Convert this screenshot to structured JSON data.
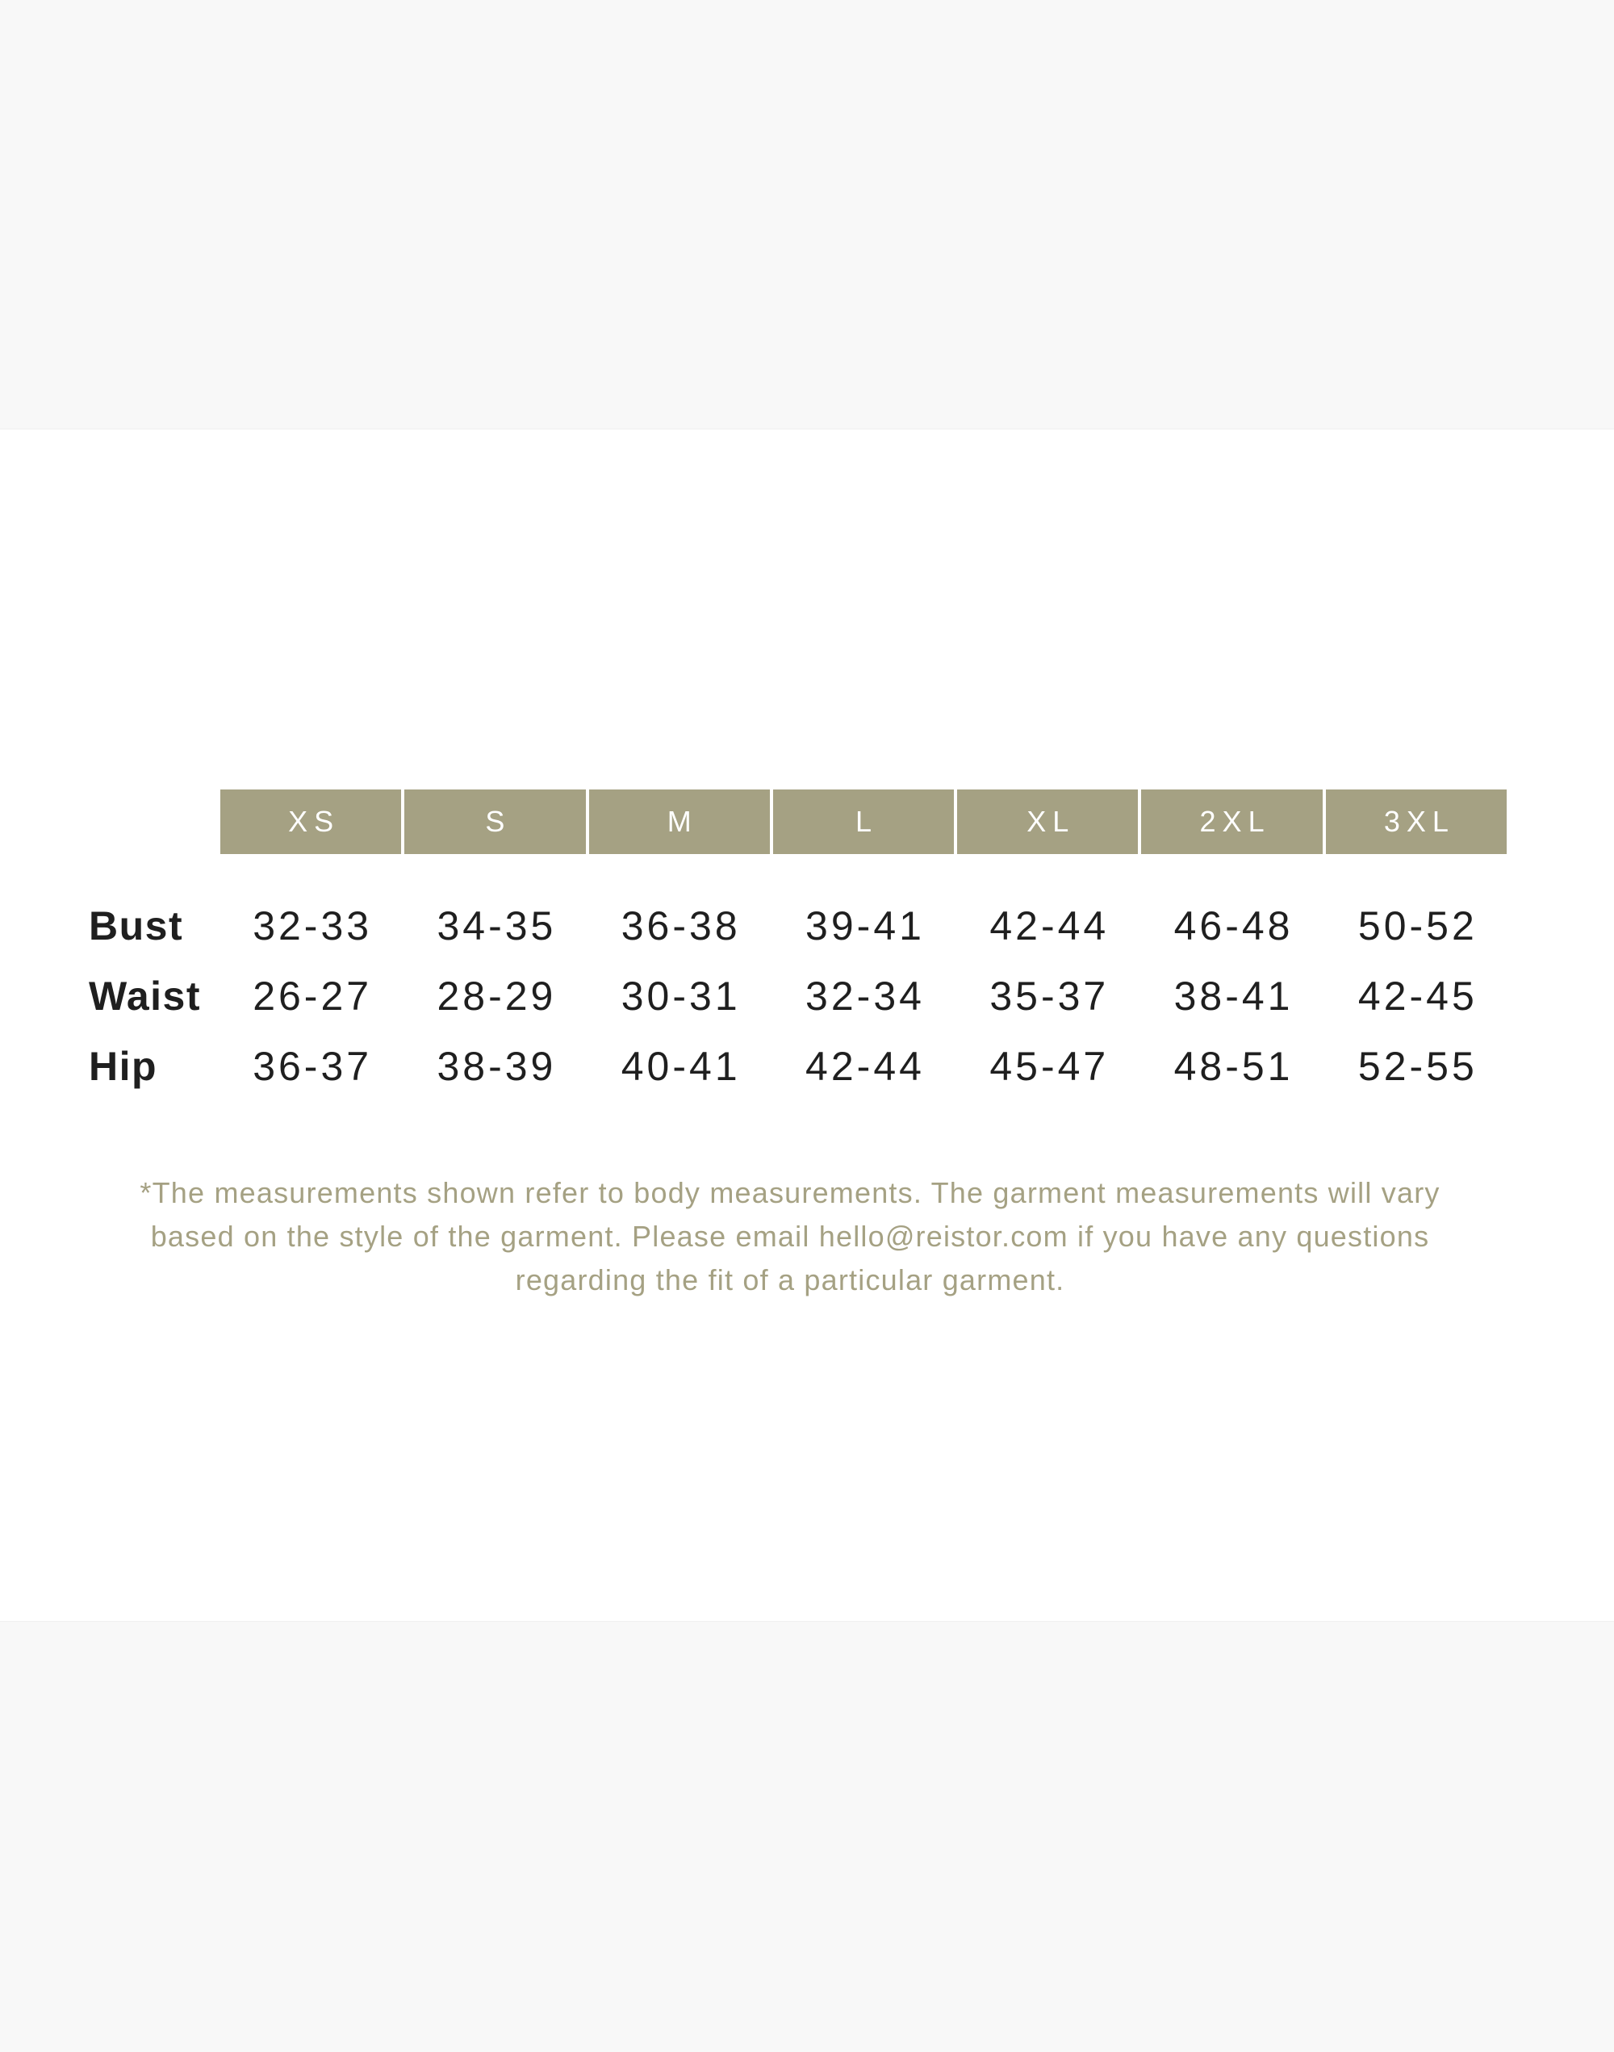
{
  "colors": {
    "page": "#ffffff",
    "band": "#f8f8f8",
    "band_edge": "#f0f0f0",
    "olive": "#a5a183",
    "header_text": "#ffffff",
    "ink": "#1f1f1f"
  },
  "size_chart": {
    "sizes": [
      "XS",
      "S",
      "M",
      "L",
      "XL",
      "2XL",
      "3XL"
    ],
    "rows": [
      {
        "label": "Bust",
        "values": [
          "32-33",
          "34-35",
          "36-38",
          "39-41",
          "42-44",
          "46-48",
          "50-52"
        ]
      },
      {
        "label": "Waist",
        "values": [
          "26-27",
          "28-29",
          "30-31",
          "32-34",
          "35-37",
          "38-41",
          "42-45"
        ]
      },
      {
        "label": "Hip",
        "values": [
          "36-37",
          "38-39",
          "40-41",
          "42-44",
          "45-47",
          "48-51",
          "52-55"
        ]
      }
    ]
  },
  "footnote": {
    "lines": [
      "*The measurements shown refer to body measurements. The garment measurements will vary",
      "based on the style of the garment. Please email hello@reistor.com if you have any questions",
      "regarding the fit of a particular garment."
    ],
    "email": "hello@reistor.com"
  },
  "chart_data": {
    "type": "table",
    "columns": [
      "XS",
      "S",
      "M",
      "L",
      "XL",
      "2XL",
      "3XL"
    ],
    "row_labels": [
      "Bust",
      "Waist",
      "Hip"
    ],
    "cells": [
      [
        "32-33",
        "34-35",
        "36-38",
        "39-41",
        "42-44",
        "46-48",
        "50-52"
      ],
      [
        "26-27",
        "28-29",
        "30-31",
        "32-34",
        "35-37",
        "38-41",
        "42-45"
      ],
      [
        "36-37",
        "38-39",
        "40-41",
        "42-44",
        "45-47",
        "48-51",
        "52-55"
      ]
    ]
  }
}
